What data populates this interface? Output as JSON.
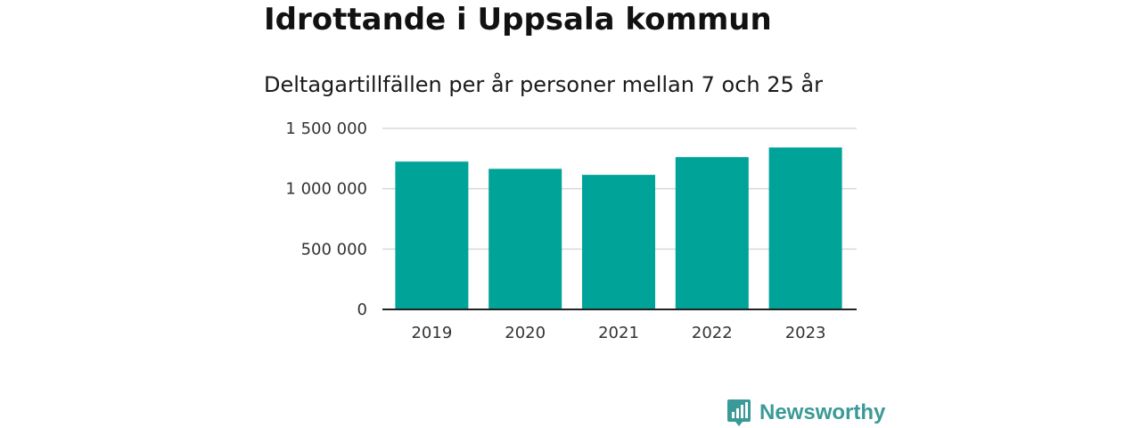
{
  "title": "Idrottande i Uppsala kommun",
  "subtitle": "Deltagartillfällen per år personer mellan 7 och 25 år",
  "brand": {
    "name": "Newsworthy",
    "color": "#3a9a97"
  },
  "colors": {
    "bar": "#00a398",
    "grid": "#d9d9d9",
    "axis": "#222222"
  },
  "chart_data": {
    "type": "bar",
    "title": "Idrottande i Uppsala kommun",
    "subtitle": "Deltagartillfällen per år personer mellan 7 och 25 år",
    "categories": [
      "2019",
      "2020",
      "2021",
      "2022",
      "2023"
    ],
    "values": [
      1225000,
      1165000,
      1115000,
      1262000,
      1342000
    ],
    "ylim": [
      0,
      1500000
    ],
    "yticks": [
      0,
      500000,
      1000000,
      1500000
    ],
    "ytick_labels": [
      "0",
      "500 000",
      "1 000 000",
      "1 500 000"
    ],
    "xlabel": "",
    "ylabel": "",
    "grid": true,
    "legend": "none"
  }
}
